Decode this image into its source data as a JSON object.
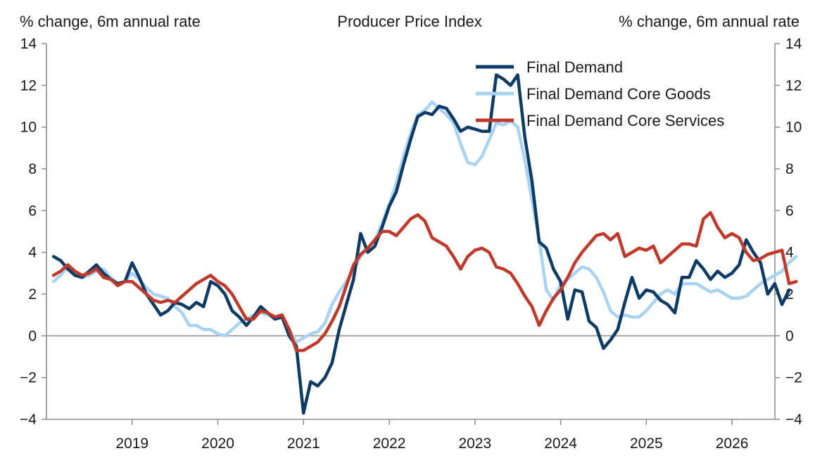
{
  "chart_data": {
    "type": "line",
    "title": "Producer Price Index",
    "ylabel_left": "% change, 6m annual rate",
    "ylabel_right": "% change, 6m annual rate",
    "ylim": [
      -4,
      14
    ],
    "yticks": [
      -4,
      -2,
      0,
      2,
      4,
      6,
      8,
      10,
      12,
      14
    ],
    "ytick_labels": [
      "−4",
      "−2",
      "0",
      "2",
      "4",
      "6",
      "8",
      "10",
      "12",
      "14"
    ],
    "xlim": [
      2018.0,
      2026.5
    ],
    "xticks": [
      2019,
      2020,
      2021,
      2022,
      2023,
      2024,
      2025,
      2026
    ],
    "xtick_labels": [
      "2019",
      "2020",
      "2021",
      "2022",
      "2023",
      "2024",
      "2025",
      "2026"
    ],
    "zero_line": true,
    "legend_position": "top-right",
    "series": [
      {
        "name": "Final Demand",
        "color": "#0d3b66",
        "x_start": 2018.083,
        "x_step": 0.08333,
        "values": [
          3.8,
          3.6,
          3.2,
          2.9,
          2.8,
          3.1,
          3.4,
          3.0,
          2.7,
          2.5,
          2.6,
          3.5,
          2.8,
          2.0,
          1.5,
          1.0,
          1.2,
          1.6,
          1.5,
          1.3,
          1.6,
          1.4,
          2.6,
          2.4,
          2.0,
          1.2,
          0.9,
          0.5,
          0.9,
          1.4,
          1.1,
          0.8,
          0.9,
          0.0,
          -0.5,
          -3.7,
          -2.2,
          -2.4,
          -2.0,
          -1.3,
          0.3,
          1.5,
          2.7,
          4.9,
          4.0,
          4.3,
          5.2,
          6.2,
          6.9,
          8.2,
          9.4,
          10.5,
          10.7,
          10.6,
          11.0,
          10.9,
          10.4,
          9.8,
          10.0,
          9.9,
          9.8,
          9.8,
          12.5,
          12.3,
          12.0,
          12.5,
          9.5,
          7.4,
          4.5,
          4.2,
          3.2,
          2.6,
          0.8,
          2.2,
          2.1,
          0.7,
          0.4,
          -0.6,
          -0.2,
          0.3,
          1.6,
          2.8,
          1.8,
          2.2,
          2.1,
          1.7,
          1.5,
          1.1,
          2.8,
          2.8,
          3.6,
          3.2,
          2.7,
          3.1,
          2.8,
          3.0,
          3.4,
          4.6,
          4.0,
          3.5,
          2.0,
          2.5,
          1.5,
          2.2
        ]
      },
      {
        "name": "Final Demand Core Goods",
        "color": "#a9d3f2",
        "x_start": 2018.083,
        "x_step": 0.08333,
        "values": [
          2.6,
          2.9,
          3.3,
          3.0,
          2.8,
          2.9,
          3.1,
          3.2,
          2.8,
          2.5,
          2.6,
          3.0,
          2.7,
          2.3,
          2.0,
          1.9,
          1.8,
          1.4,
          1.1,
          0.5,
          0.5,
          0.3,
          0.3,
          0.1,
          0.0,
          0.3,
          0.6,
          0.8,
          1.0,
          1.1,
          1.0,
          0.9,
          1.0,
          0.3,
          -0.3,
          -0.1,
          0.1,
          0.2,
          0.6,
          1.5,
          2.1,
          2.6,
          3.1,
          3.8,
          4.2,
          4.6,
          5.4,
          6.3,
          7.3,
          8.6,
          9.7,
          10.6,
          10.8,
          11.2,
          10.9,
          10.6,
          10.2,
          9.2,
          8.3,
          8.2,
          8.6,
          9.4,
          10.2,
          10.1,
          10.3,
          10.0,
          8.4,
          6.5,
          4.6,
          2.2,
          1.7,
          2.5,
          2.7,
          3.0,
          3.3,
          3.2,
          2.8,
          2.1,
          1.2,
          0.9,
          1.0,
          0.9,
          0.9,
          1.2,
          1.6,
          2.0,
          2.2,
          2.0,
          2.5,
          2.5,
          2.5,
          2.3,
          2.1,
          2.2,
          2.0,
          1.8,
          1.8,
          1.9,
          2.2,
          2.5,
          2.7,
          2.9,
          3.1,
          3.5,
          3.8
        ]
      },
      {
        "name": "Final Demand Core Services",
        "color": "#c0392b",
        "x_start": 2018.083,
        "x_step": 0.08333,
        "values": [
          2.9,
          3.1,
          3.4,
          3.1,
          2.9,
          3.0,
          3.2,
          2.8,
          2.7,
          2.4,
          2.6,
          2.6,
          2.3,
          2.0,
          1.7,
          1.6,
          1.7,
          1.6,
          1.9,
          2.2,
          2.5,
          2.7,
          2.9,
          2.6,
          2.4,
          2.0,
          1.4,
          0.8,
          0.8,
          1.2,
          1.1,
          0.9,
          1.0,
          0.3,
          -0.7,
          -0.7,
          -0.5,
          -0.3,
          0.1,
          0.7,
          1.4,
          2.4,
          3.4,
          3.9,
          4.2,
          4.6,
          5.0,
          5.0,
          4.8,
          5.2,
          5.6,
          5.8,
          5.5,
          4.7,
          4.5,
          4.3,
          3.8,
          3.2,
          3.8,
          4.1,
          4.2,
          4.0,
          3.3,
          3.2,
          3.0,
          2.5,
          1.9,
          1.4,
          0.5,
          1.2,
          1.8,
          2.2,
          2.8,
          3.5,
          4.0,
          4.4,
          4.8,
          4.9,
          4.6,
          4.9,
          3.8,
          4.0,
          4.2,
          4.1,
          4.3,
          3.5,
          3.8,
          4.1,
          4.4,
          4.4,
          4.3,
          5.6,
          5.9,
          5.2,
          4.7,
          4.9,
          4.7,
          4.0,
          3.6,
          3.7,
          3.9,
          4.0,
          4.1,
          2.5,
          2.6
        ]
      }
    ]
  }
}
